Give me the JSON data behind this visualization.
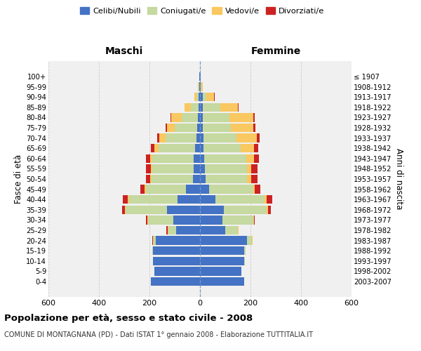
{
  "age_groups": [
    "0-4",
    "5-9",
    "10-14",
    "15-19",
    "20-24",
    "25-29",
    "30-34",
    "35-39",
    "40-44",
    "45-49",
    "50-54",
    "55-59",
    "60-64",
    "65-69",
    "70-74",
    "75-79",
    "80-84",
    "85-89",
    "90-94",
    "95-99",
    "100+"
  ],
  "birth_years": [
    "2003-2007",
    "1998-2002",
    "1993-1997",
    "1988-1992",
    "1983-1987",
    "1978-1982",
    "1973-1977",
    "1968-1972",
    "1963-1967",
    "1958-1962",
    "1953-1957",
    "1948-1952",
    "1943-1947",
    "1938-1942",
    "1933-1937",
    "1928-1932",
    "1923-1927",
    "1918-1922",
    "1913-1917",
    "1908-1912",
    "≤ 1907"
  ],
  "colors": {
    "celibi": "#4472C4",
    "coniugati": "#C5D9A0",
    "vedovi": "#FAC860",
    "divorziati": "#CC2222"
  },
  "maschi": {
    "celibi": [
      195,
      180,
      185,
      185,
      175,
      95,
      105,
      130,
      90,
      55,
      28,
      25,
      25,
      20,
      15,
      10,
      8,
      5,
      5,
      3,
      2
    ],
    "coniugati": [
      0,
      0,
      2,
      3,
      10,
      30,
      100,
      165,
      190,
      160,
      165,
      165,
      165,
      145,
      120,
      90,
      65,
      30,
      8,
      2,
      0
    ],
    "vedovi": [
      0,
      0,
      0,
      0,
      2,
      2,
      2,
      2,
      5,
      5,
      5,
      5,
      8,
      15,
      25,
      30,
      40,
      25,
      10,
      2,
      0
    ],
    "divorziati": [
      0,
      0,
      0,
      0,
      2,
      5,
      8,
      10,
      20,
      15,
      15,
      20,
      15,
      15,
      10,
      5,
      3,
      2,
      0,
      0,
      0
    ]
  },
  "femmine": {
    "celibi": [
      175,
      165,
      175,
      175,
      185,
      100,
      90,
      95,
      60,
      35,
      22,
      20,
      18,
      15,
      15,
      12,
      12,
      10,
      10,
      3,
      2
    ],
    "coniugati": [
      0,
      0,
      2,
      5,
      20,
      50,
      120,
      170,
      195,
      175,
      165,
      165,
      165,
      145,
      130,
      110,
      105,
      70,
      15,
      2,
      0
    ],
    "vedovi": [
      0,
      0,
      0,
      0,
      2,
      2,
      3,
      5,
      10,
      8,
      15,
      18,
      30,
      55,
      80,
      90,
      95,
      70,
      30,
      5,
      2
    ],
    "divorziati": [
      0,
      0,
      0,
      0,
      2,
      2,
      5,
      10,
      20,
      22,
      25,
      25,
      20,
      15,
      10,
      8,
      5,
      3,
      2,
      0,
      0
    ]
  },
  "xlim": 600,
  "title": "Popolazione per età, sesso e stato civile - 2008",
  "subtitle": "COMUNE DI MONTAGNANA (PD) - Dati ISTAT 1° gennaio 2008 - Elaborazione TUTTITALIA.IT",
  "ylabel_left": "Fasce di età",
  "ylabel_right": "Anni di nascita",
  "xlabel_maschi": "Maschi",
  "xlabel_femmine": "Femmine",
  "bg_color": "#F0F0F0",
  "grid_color": "#CCCCCC",
  "bar_height": 0.85,
  "legend_labels": [
    "Celibi/Nubili",
    "Coniugati/e",
    "Vedovi/e",
    "Divorziati/e"
  ]
}
